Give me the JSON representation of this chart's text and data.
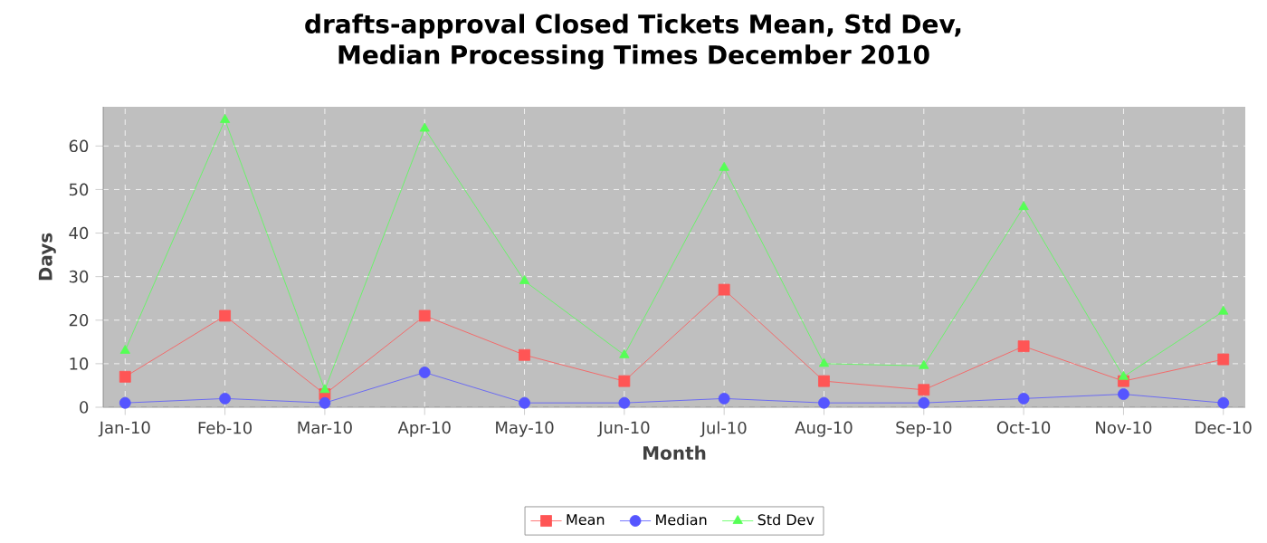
{
  "chart_data": {
    "type": "line",
    "title": "drafts-approval Closed Tickets Mean, Std Dev, Median Processing Times December 2010",
    "xlabel": "Month",
    "ylabel": "Days",
    "categories": [
      "Jan-10",
      "Feb-10",
      "Mar-10",
      "Apr-10",
      "May-10",
      "Jun-10",
      "Jul-10",
      "Aug-10",
      "Sep-10",
      "Oct-10",
      "Nov-10",
      "Dec-10"
    ],
    "series": [
      {
        "name": "Mean",
        "color": "#ff5555",
        "marker": "square",
        "values": [
          7,
          21,
          3,
          21,
          12,
          6,
          27,
          6,
          4,
          14,
          6,
          11
        ]
      },
      {
        "name": "Median",
        "color": "#5555ff",
        "marker": "circle",
        "values": [
          1,
          2,
          1,
          8,
          1,
          1,
          2,
          1,
          1,
          2,
          3,
          1
        ]
      },
      {
        "name": "Std Dev",
        "color": "#55ff55",
        "marker": "triangle",
        "values": [
          13,
          66,
          4,
          64,
          29,
          12,
          55,
          10,
          9.5,
          46,
          7,
          22
        ]
      }
    ],
    "ylim": [
      0,
      69
    ],
    "yticks": [
      0,
      10,
      20,
      30,
      40,
      50,
      60
    ],
    "grid": true,
    "legend": "bottom"
  }
}
